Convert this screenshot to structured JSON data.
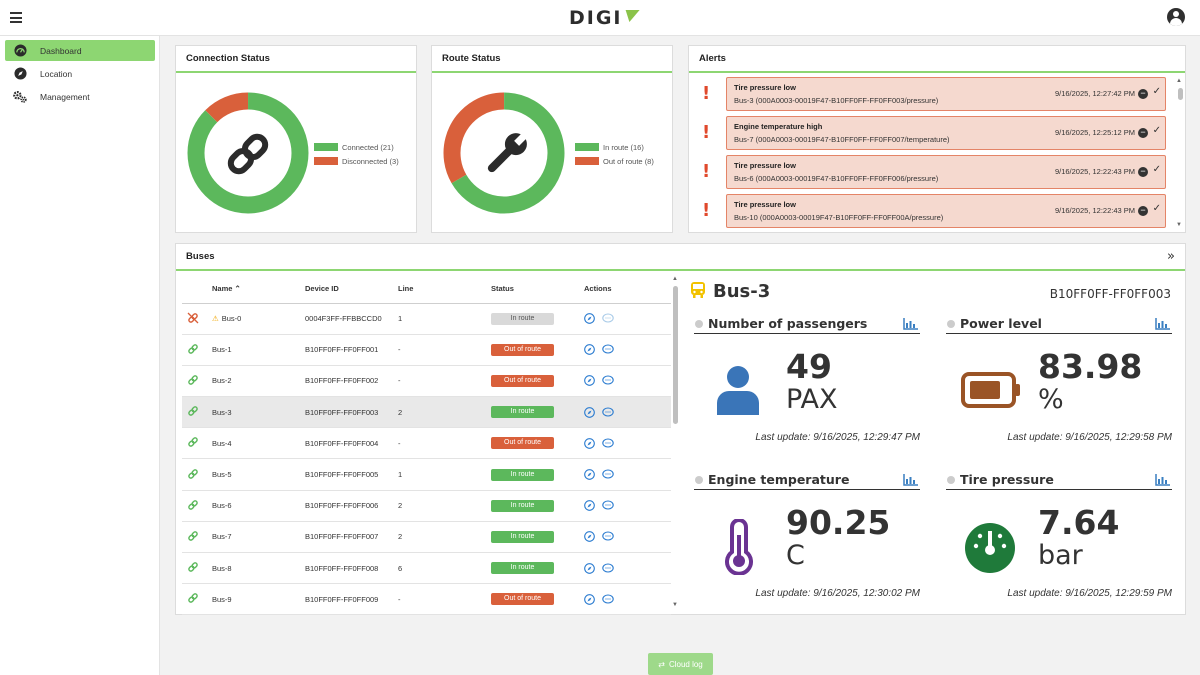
{
  "header": {
    "logo_text": "DIGI",
    "logo_mark_color": "#8bc34a"
  },
  "sidebar": {
    "items": [
      {
        "label": "Dashboard",
        "icon": "gauge-icon",
        "active": true
      },
      {
        "label": "Location",
        "icon": "compass-icon",
        "active": false
      },
      {
        "label": "Management",
        "icon": "gears-icon",
        "active": false
      }
    ]
  },
  "connection_status": {
    "title": "Connection Status",
    "icon": "chain-link-icon",
    "legend": [
      {
        "label": "Connected (21)",
        "value": 21,
        "color": "#5cb85c"
      },
      {
        "label": "Disconnected (3)",
        "value": 3,
        "color": "#d9603b"
      }
    ]
  },
  "route_status": {
    "title": "Route Status",
    "icon": "wrench-icon",
    "legend": [
      {
        "label": "In route (16)",
        "value": 16,
        "color": "#5cb85c"
      },
      {
        "label": "Out of route (8)",
        "value": 8,
        "color": "#d9603b"
      }
    ]
  },
  "alerts": {
    "title": "Alerts",
    "items": [
      {
        "title": "Tire pressure low",
        "detail": "Bus-3 (000A0003-00019F47-B10FF0FF-FF0FF003/pressure)",
        "time": "9/16/2025, 12:27:42 PM"
      },
      {
        "title": "Engine temperature high",
        "detail": "Bus-7 (000A0003-00019F47-B10FF0FF-FF0FF007/temperature)",
        "time": "9/16/2025, 12:25:12 PM"
      },
      {
        "title": "Tire pressure low",
        "detail": "Bus-6 (000A0003-00019F47-B10FF0FF-FF0FF006/pressure)",
        "time": "9/16/2025, 12:22:43 PM"
      },
      {
        "title": "Tire pressure low",
        "detail": "Bus-10 (000A0003-00019F47-B10FF0FF-FF0FF00A/pressure)",
        "time": "9/16/2025, 12:22:43 PM"
      }
    ]
  },
  "buses": {
    "title": "Buses",
    "columns": {
      "name": "Name",
      "device": "Device ID",
      "line": "Line",
      "status": "Status",
      "actions": "Actions"
    },
    "rows": [
      {
        "name": "Bus-0",
        "device": "0004F3FF-FFBBCCD0",
        "line": "1",
        "status": "In route",
        "status_color": "#d9d9d9",
        "status_text_color": "#555",
        "connected": false,
        "warning": true,
        "selected": false
      },
      {
        "name": "Bus-1",
        "device": "B10FF0FF-FF0FF001",
        "line": "-",
        "status": "Out of route",
        "status_color": "#d9603b",
        "status_text_color": "#fff",
        "connected": true,
        "warning": false,
        "selected": false
      },
      {
        "name": "Bus-2",
        "device": "B10FF0FF-FF0FF002",
        "line": "-",
        "status": "Out of route",
        "status_color": "#d9603b",
        "status_text_color": "#fff",
        "connected": true,
        "warning": false,
        "selected": false
      },
      {
        "name": "Bus-3",
        "device": "B10FF0FF-FF0FF003",
        "line": "2",
        "status": "In route",
        "status_color": "#5cb85c",
        "status_text_color": "#fff",
        "connected": true,
        "warning": false,
        "selected": true
      },
      {
        "name": "Bus-4",
        "device": "B10FF0FF-FF0FF004",
        "line": "-",
        "status": "Out of route",
        "status_color": "#d9603b",
        "status_text_color": "#fff",
        "connected": true,
        "warning": false,
        "selected": false
      },
      {
        "name": "Bus-5",
        "device": "B10FF0FF-FF0FF005",
        "line": "1",
        "status": "In route",
        "status_color": "#5cb85c",
        "status_text_color": "#fff",
        "connected": true,
        "warning": false,
        "selected": false
      },
      {
        "name": "Bus-6",
        "device": "B10FF0FF-FF0FF006",
        "line": "2",
        "status": "In route",
        "status_color": "#5cb85c",
        "status_text_color": "#fff",
        "connected": true,
        "warning": false,
        "selected": false
      },
      {
        "name": "Bus-7",
        "device": "B10FF0FF-FF0FF007",
        "line": "2",
        "status": "In route",
        "status_color": "#5cb85c",
        "status_text_color": "#fff",
        "connected": true,
        "warning": false,
        "selected": false
      },
      {
        "name": "Bus-8",
        "device": "B10FF0FF-FF0FF008",
        "line": "6",
        "status": "In route",
        "status_color": "#5cb85c",
        "status_text_color": "#fff",
        "connected": true,
        "warning": false,
        "selected": false
      },
      {
        "name": "Bus-9",
        "device": "B10FF0FF-FF0FF009",
        "line": "-",
        "status": "Out of route",
        "status_color": "#d9603b",
        "status_text_color": "#fff",
        "connected": true,
        "warning": false,
        "selected": false
      }
    ]
  },
  "detail": {
    "bus_name": "Bus-3",
    "device_id": "B10FF0FF-FF0FF003",
    "metrics": [
      {
        "title": "Number of passengers",
        "value": "49",
        "unit": "PAX",
        "update": "Last update: 9/16/2025, 12:29:47 PM",
        "icon": "person-icon",
        "color": "#3a75b8"
      },
      {
        "title": "Power level",
        "value": "83.98",
        "unit": "%",
        "update": "Last update: 9/16/2025, 12:29:58 PM",
        "icon": "battery-icon",
        "color": "#9a5426"
      },
      {
        "title": "Engine temperature",
        "value": "90.25",
        "unit": "C",
        "update": "Last update: 9/16/2025, 12:30:02 PM",
        "icon": "thermometer-icon",
        "color": "#6a3392"
      },
      {
        "title": "Tire pressure",
        "value": "7.64",
        "unit": "bar",
        "update": "Last update: 9/16/2025, 12:29:59 PM",
        "icon": "gauge-dial-icon",
        "color": "#1f7a3a"
      }
    ]
  },
  "cloud_log": {
    "label": "Cloud log"
  }
}
